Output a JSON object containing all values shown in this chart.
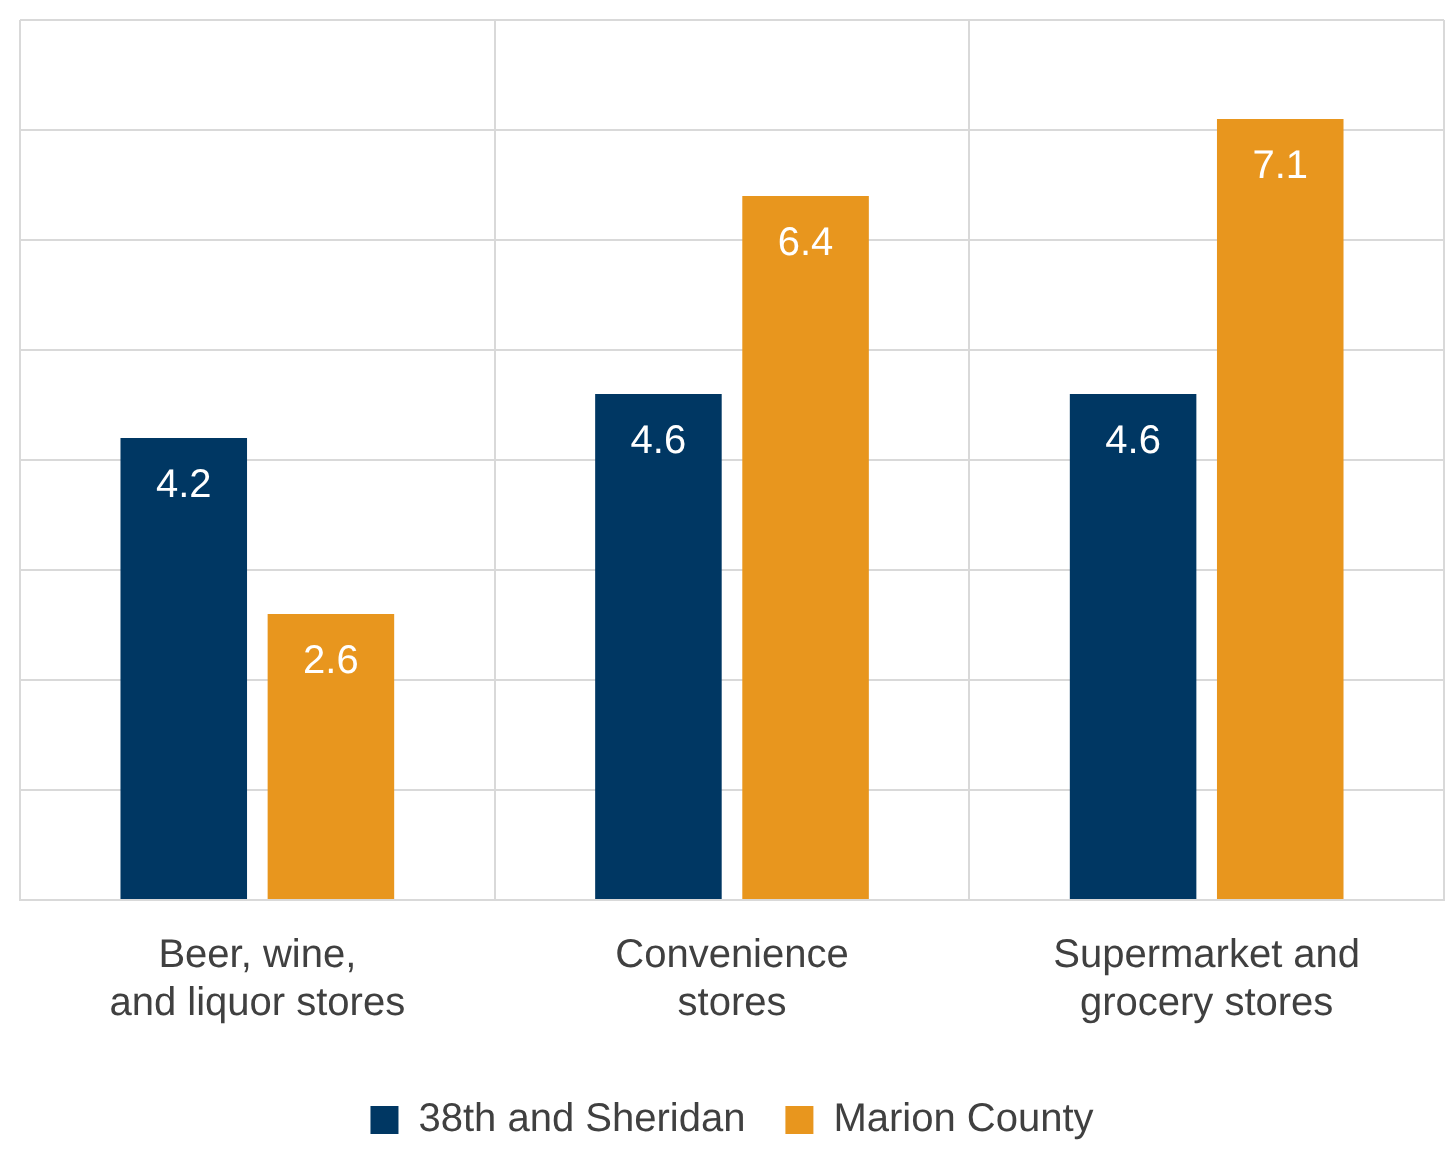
{
  "chart_data": {
    "type": "bar",
    "categories": [
      "Beer, wine,\nand liquor stores",
      "Convenience\nstores",
      "Supermarket and\ngrocery stores"
    ],
    "series": [
      {
        "name": "38th and Sheridan",
        "color": "#003763",
        "values": [
          4.2,
          4.6,
          4.6
        ]
      },
      {
        "name": "Marion County",
        "color": "#e8961e",
        "values": [
          2.6,
          6.4,
          7.1
        ]
      }
    ],
    "ylim": [
      0,
      8
    ],
    "yticks": [
      {
        "value": 0,
        "label": null
      },
      {
        "value": 1,
        "label": null
      },
      {
        "value": 2,
        "label": null
      },
      {
        "value": 3,
        "label": null
      },
      {
        "value": 4,
        "label": null
      },
      {
        "value": 5,
        "label": null
      },
      {
        "value": 6,
        "label": null
      },
      {
        "value": 7,
        "label": null
      },
      {
        "value": 8,
        "label": null
      }
    ],
    "grid": true,
    "legend": "bottom",
    "data_labels": true,
    "tick_labels": "x"
  }
}
